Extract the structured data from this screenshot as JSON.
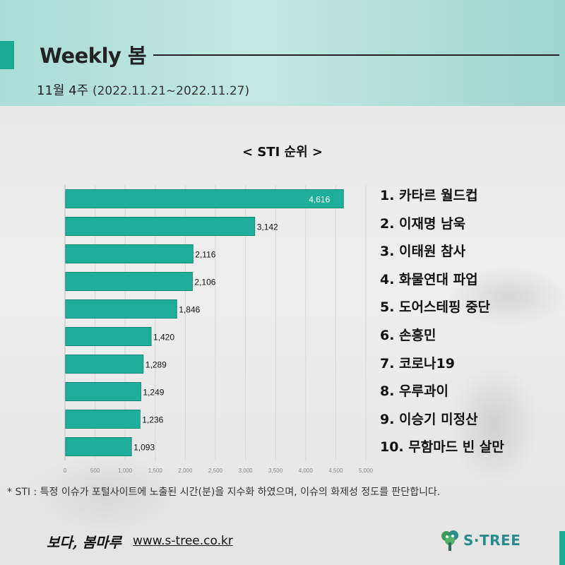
{
  "header": {
    "title": "Weekly 봄",
    "week": "11월 4주",
    "range": "(2022.11.21~2022.11.27)"
  },
  "chart_title": "< STI 순위 >",
  "chart_data": {
    "type": "bar",
    "orientation": "horizontal",
    "categories": [
      "카타르 월드컵",
      "이재명 남욱",
      "이태원 참사",
      "화물연대 파업",
      "도어스테핑 중단",
      "손흥민",
      "코로나19",
      "우루과이",
      "이승기 미정산",
      "무함마드 빈 살만"
    ],
    "values": [
      4616,
      3142,
      2116,
      2106,
      1846,
      1420,
      1289,
      1249,
      1236,
      1093
    ],
    "value_labels": [
      "4,616",
      "3,142",
      "2,116",
      "2,106",
      "1,846",
      "1,420",
      "1,289",
      "1,249",
      "1,236",
      "1,093"
    ],
    "xlim": [
      0,
      5000
    ],
    "xticks": [
      0,
      500,
      1000,
      1500,
      2000,
      2500,
      3000,
      3500,
      4000,
      4500,
      5000
    ],
    "xtick_labels": [
      "0",
      "500",
      "1,000",
      "1,500",
      "2,000",
      "2,500",
      "3,000",
      "3,500",
      "4,000",
      "4,500",
      "5,000"
    ],
    "bar_color": "#1fae99",
    "grid": true
  },
  "ranking": [
    "1. 카타르 월드컵",
    "2. 이재명 남욱",
    "3. 이태원 참사",
    "4. 화물연대 파업",
    "5. 도어스테핑 중단",
    "6. 손흥민",
    "7. 코로나19",
    "8. 우루과이",
    "9. 이승기 미정산",
    "10. 무함마드 빈 살만"
  ],
  "footnote": "* STI : 특정 이슈가 포털사이트에 노출된 시간(분)을 지수화 하였으며, 이슈의 화제성 정도를 판단합니다.",
  "footer": {
    "brand": "보다, 봄마루",
    "site": "www.s-tree.co.kr",
    "logo_text": "S·TREE"
  },
  "colors": {
    "accent": "#1aa993",
    "header_bg": "#b4e1da",
    "logo": "#2a8b8a"
  }
}
